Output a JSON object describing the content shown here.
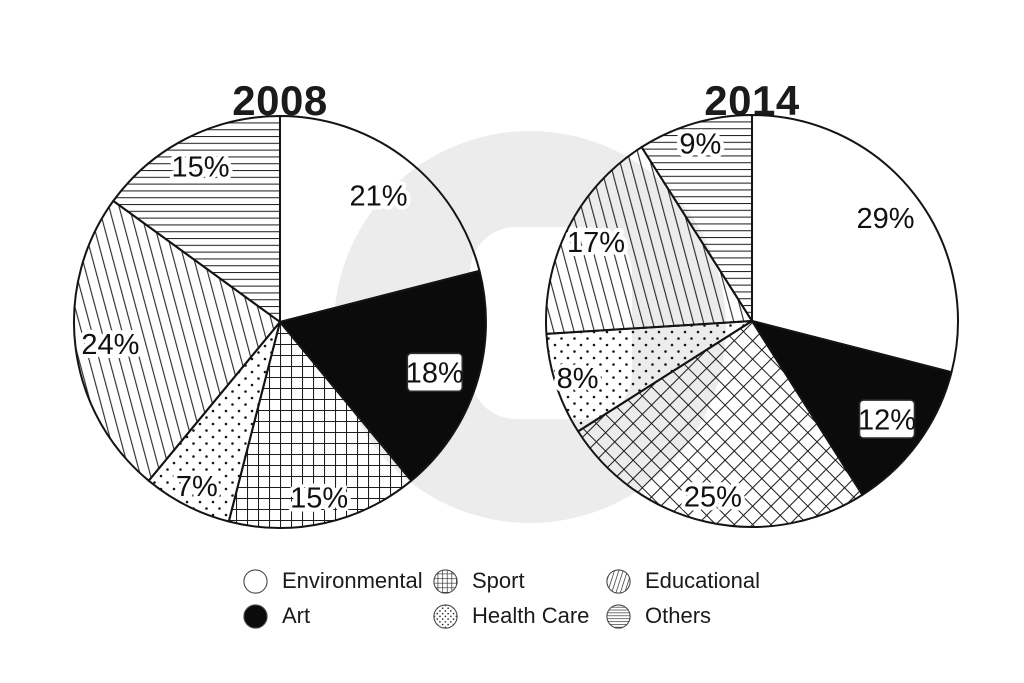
{
  "colors": {
    "background": "#ffffff",
    "ink": "#141414",
    "watermark_gray": "#ececec"
  },
  "chart_data": [
    {
      "type": "pie",
      "title": "2008",
      "units": "percent",
      "start_angle_deg": 0,
      "direction": "clockwise",
      "categories": [
        "Environmental",
        "Art",
        "Sport",
        "Health Care",
        "Educational",
        "Others"
      ],
      "values": [
        21,
        18,
        15,
        7,
        24,
        15
      ],
      "labels": [
        "21%",
        "18%",
        "15%",
        "7%",
        "24%",
        "15%"
      ],
      "patterns": [
        "solid-white",
        "solid-black",
        "grid-square",
        "dots",
        "diagonal-lines",
        "horizontal-lines"
      ],
      "label_radius": [
        0.78,
        0.79,
        0.87,
        0.89,
        0.83,
        0.85
      ]
    },
    {
      "type": "pie",
      "title": "2014",
      "units": "percent",
      "start_angle_deg": 0,
      "direction": "clockwise",
      "categories": [
        "Environmental",
        "Art",
        "Sport",
        "Health Care",
        "Educational",
        "Others"
      ],
      "values": [
        29,
        12,
        25,
        8,
        17,
        9
      ],
      "labels": [
        "29%",
        "12%",
        "25%",
        "8%",
        "17%",
        "9%"
      ],
      "patterns": [
        "solid-white",
        "solid-black",
        "grid-diamond",
        "dots",
        "diagonal-lines",
        "horizontal-lines"
      ],
      "label_radius": [
        0.82,
        0.81,
        0.87,
        0.89,
        0.85,
        0.9
      ]
    }
  ],
  "legend": {
    "columns": [
      [
        {
          "label": "Environmental",
          "pattern": "solid-white"
        },
        {
          "label": "Art",
          "pattern": "solid-black"
        }
      ],
      [
        {
          "label": "Sport",
          "pattern": "grid-square"
        },
        {
          "label": "Health Care",
          "pattern": "dots"
        }
      ],
      [
        {
          "label": "Educational",
          "pattern": "diagonal-lines"
        },
        {
          "label": "Others",
          "pattern": "horizontal-lines"
        }
      ]
    ]
  }
}
